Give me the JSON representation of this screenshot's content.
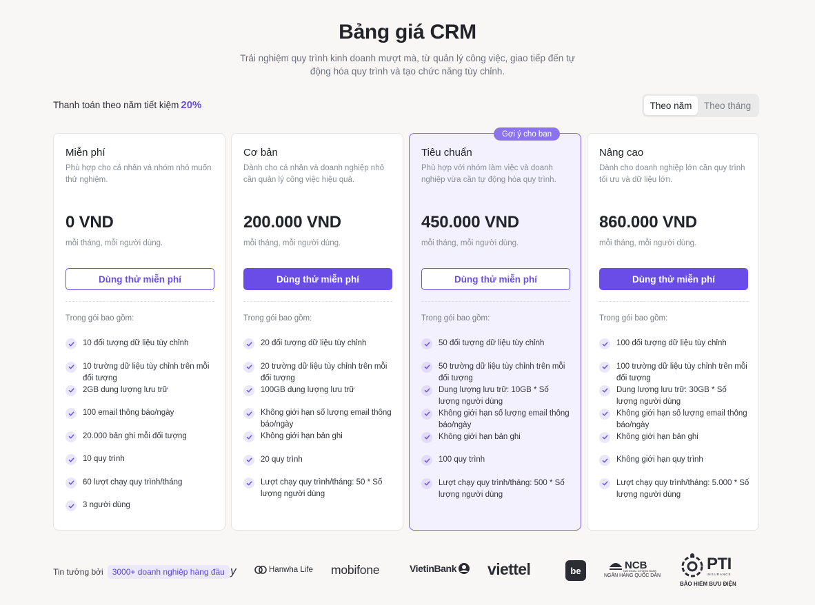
{
  "header": {
    "title": "Bảng giá CRM",
    "subtitle": "Trải nghiệm quy trình kinh doanh mượt mà, từ quản lý công việc, giao tiếp đến tự động hóa quy trình và tạo chức năng tùy chỉnh."
  },
  "billing": {
    "save_text": "Thanh toán theo năm tiết kiệm",
    "save_percent": "20%",
    "toggle_yearly": "Theo năm",
    "toggle_monthly": "Theo tháng",
    "selected": "Theo năm"
  },
  "colors": {
    "accent": "#6a4de6",
    "badge": "#8b73ee",
    "featured_bg": "#f4f1fe"
  },
  "plans": [
    {
      "name": "Miễn phí",
      "desc": "Phù hợp cho cá nhân và nhóm nhỏ muốn thử nghiệm.",
      "price": "0 VND",
      "unit": "mỗi tháng, mỗi người dùng.",
      "button": "Dùng thử miễn phí",
      "included_label": "Trong gói bao gồm:",
      "features": [
        "10 đối tượng dữ liệu tùy chỉnh",
        "10 trường dữ liệu tùy chỉnh trên mỗi đối tượng",
        "2GB dung lượng lưu trữ",
        "100 email thông báo/ngày",
        "20.000 bản ghi mỗi đối tượng",
        "10 quy trình",
        "60 lượt chạy quy trình/tháng",
        "3 người dùng"
      ]
    },
    {
      "name": "Cơ bản",
      "desc": "Dành cho cá nhân và doanh nghiệp nhỏ cần quản lý công việc hiệu quả.",
      "price": "200.000 VND",
      "unit": "mỗi tháng, mỗi người dùng.",
      "button": "Dùng thử miễn phí",
      "included_label": "Trong gói bao gồm:",
      "features": [
        "20 đối tượng dữ liệu tùy chỉnh",
        "20 trường dữ liệu tùy chỉnh trên mỗi đối tượng",
        "100GB dung lượng lưu trữ",
        "Không giới hạn số lượng email thông báo/ngày",
        "Không giới hạn bản ghi",
        "20 quy trình",
        "Lượt chạy quy trình/tháng: 50 * Số lượng người dùng"
      ]
    },
    {
      "name": "Tiêu chuẩn",
      "badge": "Gợi ý cho bạn",
      "desc": "Phù hợp với nhóm làm việc và doanh nghiệp vừa cần tự động hóa quy trình.",
      "price": "450.000 VND",
      "unit": "mỗi tháng, mỗi người dùng.",
      "button": "Dùng thử miễn phí",
      "included_label": "Trong gói bao gồm:",
      "features": [
        "50 đối tượng dữ liệu tùy chỉnh",
        "50 trường dữ liệu tùy chỉnh trên mỗi đối tượng",
        "Dung lượng lưu trữ: 10GB * Số lượng người dùng",
        "Không giới hạn số lượng email thông báo/ngày",
        "Không giới hạn bản ghi",
        "100 quy trình",
        "Lượt chạy quy trình/tháng: 500 * Số lượng người dùng"
      ]
    },
    {
      "name": "Nâng cao",
      "desc": "Dành cho doanh nghiệp lớn cần quy trình tối ưu và dữ liệu lớn.",
      "price": "860.000 VND",
      "unit": "mỗi tháng, mỗi người dùng.",
      "button": "Dùng thử miễn phí",
      "included_label": "Trong gói bao gồm:",
      "features": [
        "100 đối tượng dữ liệu tùy chỉnh",
        "100 trường dữ liệu tùy chỉnh trên mỗi đối tượng",
        "Dung lượng lưu trữ: 30GB * Số lượng người dùng",
        "Không giới hạn số lượng email thông báo/ngày",
        "Không giới hạn bản ghi",
        "Không giới hạn quy trình",
        "Lượt chạy quy trình/tháng: 5.000 * Số lượng người dùng"
      ]
    }
  ],
  "trust": {
    "label": "Tin tưởng bởi",
    "pill": "3000+ doanh nghiệp hàng đầu",
    "logos": {
      "partial": "y",
      "hanwha": "Hanwha Life",
      "mobifone": "mobifone",
      "vietinbank": "VietinBank",
      "viettel": "viettel",
      "be": "be",
      "ncb": "NCB",
      "ncb_small": "NATIONAL CITIZEN BANK",
      "ncb_sub": "NGÂN HÀNG QUỐC DÂN",
      "pti": "PTI",
      "pti_small": "INSURANCE",
      "pti_sub": "BẢO HIỂM BƯU ĐIỆN"
    }
  }
}
